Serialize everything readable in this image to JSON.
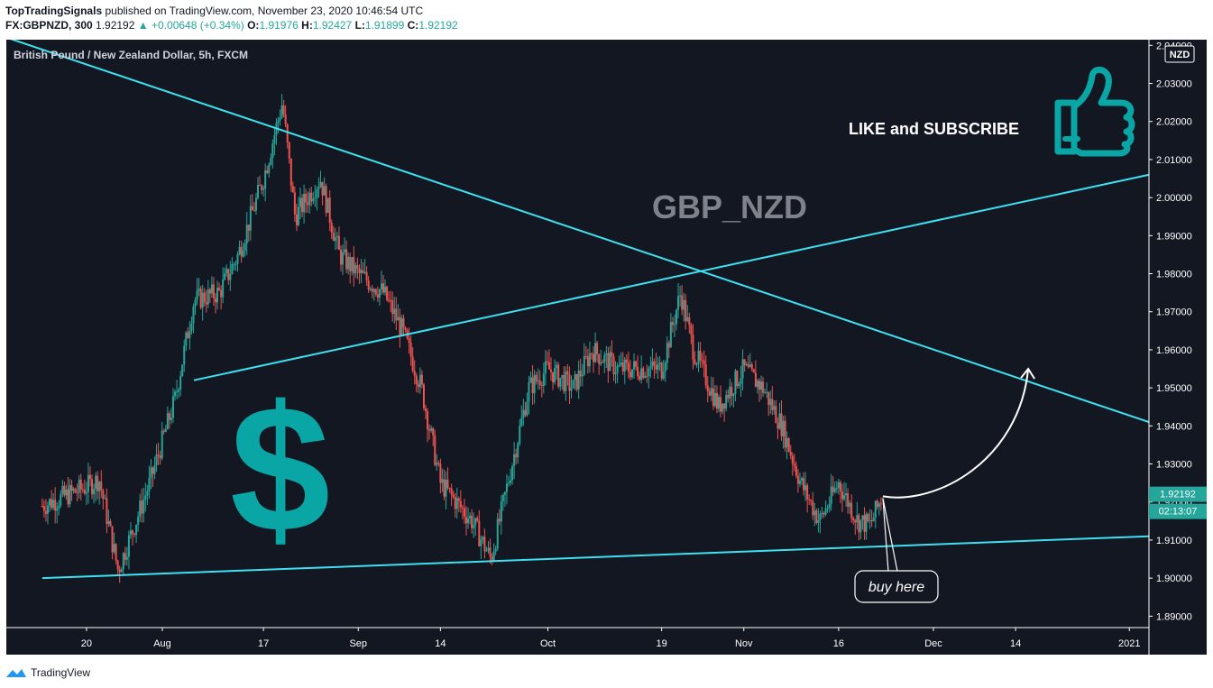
{
  "header": {
    "author": "TopTradingSignals",
    "published_text": "published on TradingView.com, November 23, 2020 10:46:54 UTC",
    "symbol": "FX:GBPNZD, 300",
    "last": "1.92192",
    "change": "+0.00648 (+0.34%)",
    "o_label": "O:",
    "o_value": "1.91976",
    "h_label": "H:",
    "h_value": "1.92427",
    "l_label": "L:",
    "l_value": "1.91899",
    "c_label": "C:",
    "c_value": "1.92192"
  },
  "footer": {
    "brand": "TradingView"
  },
  "colors": {
    "background": "#131722",
    "up": "#26a69a",
    "down": "#ef5350",
    "trendline": "#3fe0f0",
    "icon": "#0aa5a5",
    "price_tag": "#26a69a"
  },
  "chart_data": {
    "type": "candlestick",
    "title": "British Pound / New Zealand Dollar, 5h, FXCM",
    "watermark": "GBP_NZD",
    "currency_badge": "NZD",
    "x_tick_labels": [
      "20",
      "Aug",
      "17",
      "Sep",
      "14",
      "Oct",
      "19",
      "Nov",
      "16",
      "Dec",
      "14",
      "2021"
    ],
    "y_tick_labels": [
      "2.04000",
      "2.03000",
      "2.02000",
      "2.01000",
      "2.00000",
      "1.99000",
      "1.98000",
      "1.97000",
      "1.96000",
      "1.95000",
      "1.94000",
      "1.93000",
      "1.92000",
      "1.91000",
      "1.90000",
      "1.89000"
    ],
    "y_range": [
      1.887,
      2.0415
    ],
    "last_price": "1.92192",
    "countdown": "02:13:07",
    "price_path": [
      [
        "2020-07-13",
        1.919
      ],
      [
        "2020-07-20",
        1.924
      ],
      [
        "2020-07-22",
        1.926
      ],
      [
        "2020-07-25",
        1.902
      ],
      [
        "2020-07-30",
        1.925
      ],
      [
        "2020-08-03",
        1.947
      ],
      [
        "2020-08-06",
        1.973
      ],
      [
        "2020-08-10",
        1.975
      ],
      [
        "2020-08-13",
        1.985
      ],
      [
        "2020-08-17",
        2.005
      ],
      [
        "2020-08-20",
        2.025
      ],
      [
        "2020-08-22",
        1.995
      ],
      [
        "2020-08-26",
        2.005
      ],
      [
        "2020-08-29",
        1.985
      ],
      [
        "2020-09-01",
        1.98
      ],
      [
        "2020-09-05",
        1.975
      ],
      [
        "2020-09-08",
        1.965
      ],
      [
        "2020-09-11",
        1.95
      ],
      [
        "2020-09-14",
        1.925
      ],
      [
        "2020-09-19",
        1.915
      ],
      [
        "2020-09-22",
        1.905
      ],
      [
        "2020-09-26",
        1.935
      ],
      [
        "2020-09-28",
        1.95
      ],
      [
        "2020-10-01",
        1.955
      ],
      [
        "2020-10-05",
        1.95
      ],
      [
        "2020-10-08",
        1.96
      ],
      [
        "2020-10-12",
        1.955
      ],
      [
        "2020-10-15",
        1.955
      ],
      [
        "2020-10-19",
        1.955
      ],
      [
        "2020-10-22",
        1.975
      ],
      [
        "2020-10-24",
        1.96
      ],
      [
        "2020-10-28",
        1.945
      ],
      [
        "2020-11-01",
        1.955
      ],
      [
        "2020-11-04",
        1.95
      ],
      [
        "2020-11-07",
        1.94
      ],
      [
        "2020-11-10",
        1.925
      ],
      [
        "2020-11-13",
        1.915
      ],
      [
        "2020-11-16",
        1.925
      ],
      [
        "2020-11-19",
        1.915
      ],
      [
        "2020-11-21",
        1.914
      ],
      [
        "2020-11-23",
        1.922
      ]
    ],
    "trendlines": [
      {
        "from": [
          "2020-07-03",
          2.0445
        ],
        "to": [
          "2021-01-06",
          1.941
        ]
      },
      {
        "from": [
          "2020-08-06",
          1.952
        ],
        "to": [
          "2021-01-06",
          2.006
        ]
      },
      {
        "from": [
          "2020-07-13",
          1.9
        ],
        "to": [
          "2021-01-06",
          1.911
        ]
      }
    ],
    "projection": {
      "from": [
        "2020-11-23",
        1.9215
      ],
      "to": [
        "2020-12-16",
        1.955
      ]
    },
    "annotations": {
      "cta": "LIKE and SUBSCRIBE",
      "buy_label": "buy here",
      "dollar_symbol": "$"
    },
    "grid": false
  }
}
